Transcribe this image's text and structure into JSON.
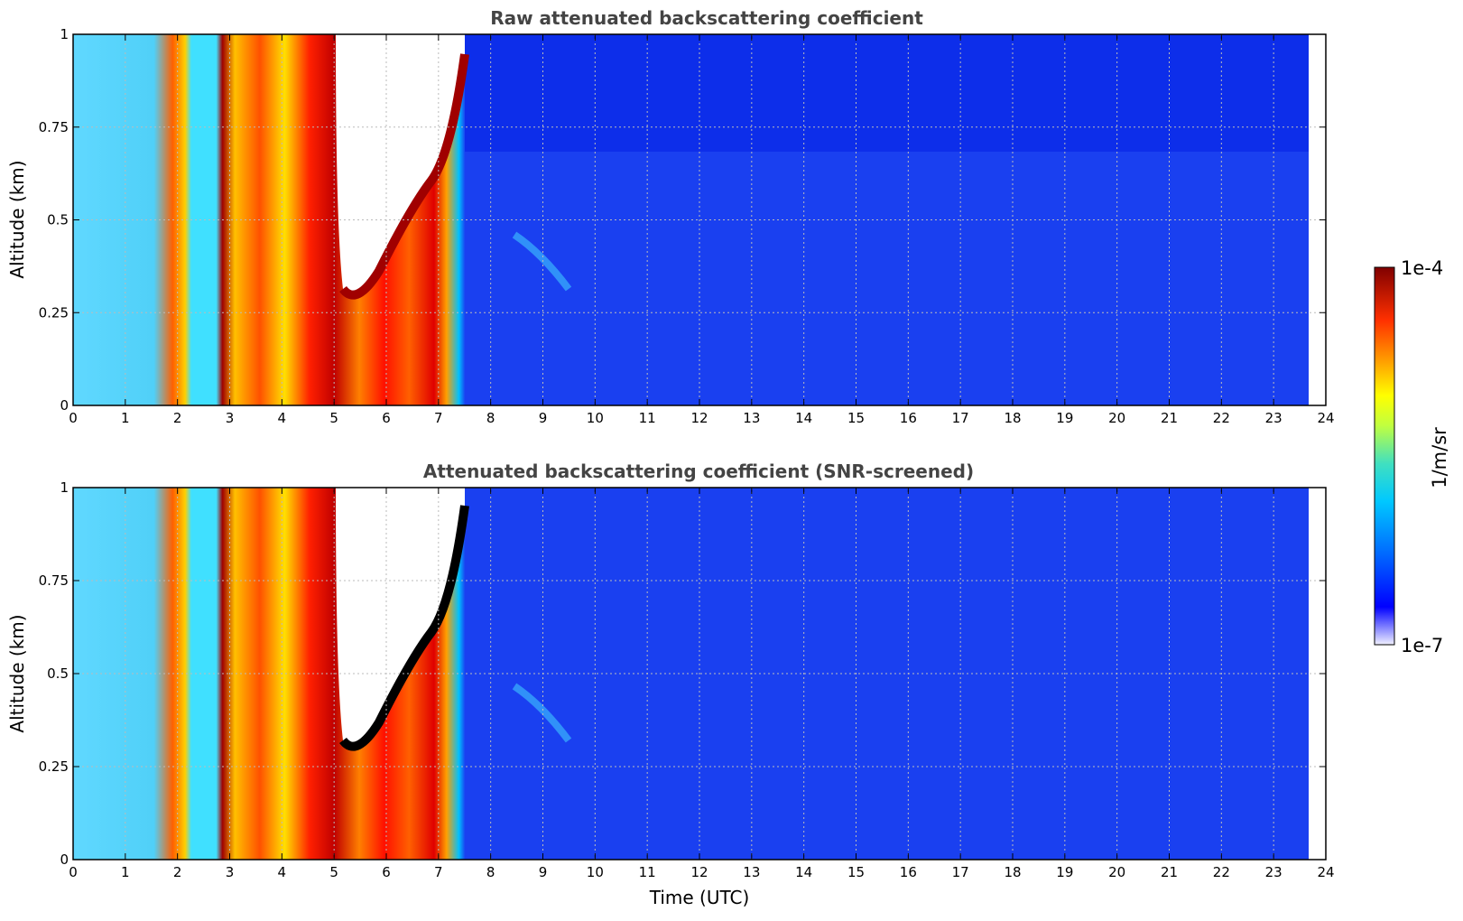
{
  "chart_data": [
    {
      "type": "heatmap",
      "title": "Raw attenuated backscattering coefficient",
      "xlabel": "",
      "ylabel": "Altitude (km)",
      "xlim": [
        0,
        24
      ],
      "ylim": [
        0,
        1
      ],
      "xticks": [
        "0",
        "1",
        "2",
        "3",
        "4",
        "5",
        "6",
        "7",
        "8",
        "9",
        "10",
        "11",
        "12",
        "13",
        "14",
        "15",
        "16",
        "17",
        "18",
        "19",
        "20",
        "21",
        "22",
        "23",
        "24"
      ],
      "yticks": [
        "0",
        "0.25",
        "0.5",
        "0.75",
        "1"
      ],
      "grid": true,
      "data_extent_hours": [
        0,
        23.7
      ]
    },
    {
      "type": "heatmap",
      "title": "Attenuated backscattering coefficient (SNR-screened)",
      "xlabel": "Time (UTC)",
      "ylabel": "Altitude (km)",
      "xlim": [
        0,
        24
      ],
      "ylim": [
        0,
        1
      ],
      "xticks": [
        "0",
        "1",
        "2",
        "3",
        "4",
        "5",
        "6",
        "7",
        "8",
        "9",
        "10",
        "11",
        "12",
        "13",
        "14",
        "15",
        "16",
        "17",
        "18",
        "19",
        "20",
        "21",
        "22",
        "23",
        "24"
      ],
      "yticks": [
        "0",
        "0.25",
        "0.5",
        "0.75",
        "1"
      ],
      "grid": true,
      "data_extent_hours": [
        0,
        23.7
      ]
    }
  ],
  "colorbar": {
    "label": "1/m/sr",
    "max_label": "1e-4",
    "min_label": "1e-7",
    "colormap": [
      "#f0f0ff",
      "#0000ff",
      "#0070ff",
      "#00c8ff",
      "#40e0c0",
      "#c0ff40",
      "#ffff00",
      "#ffa000",
      "#ff3000",
      "#800000"
    ]
  }
}
